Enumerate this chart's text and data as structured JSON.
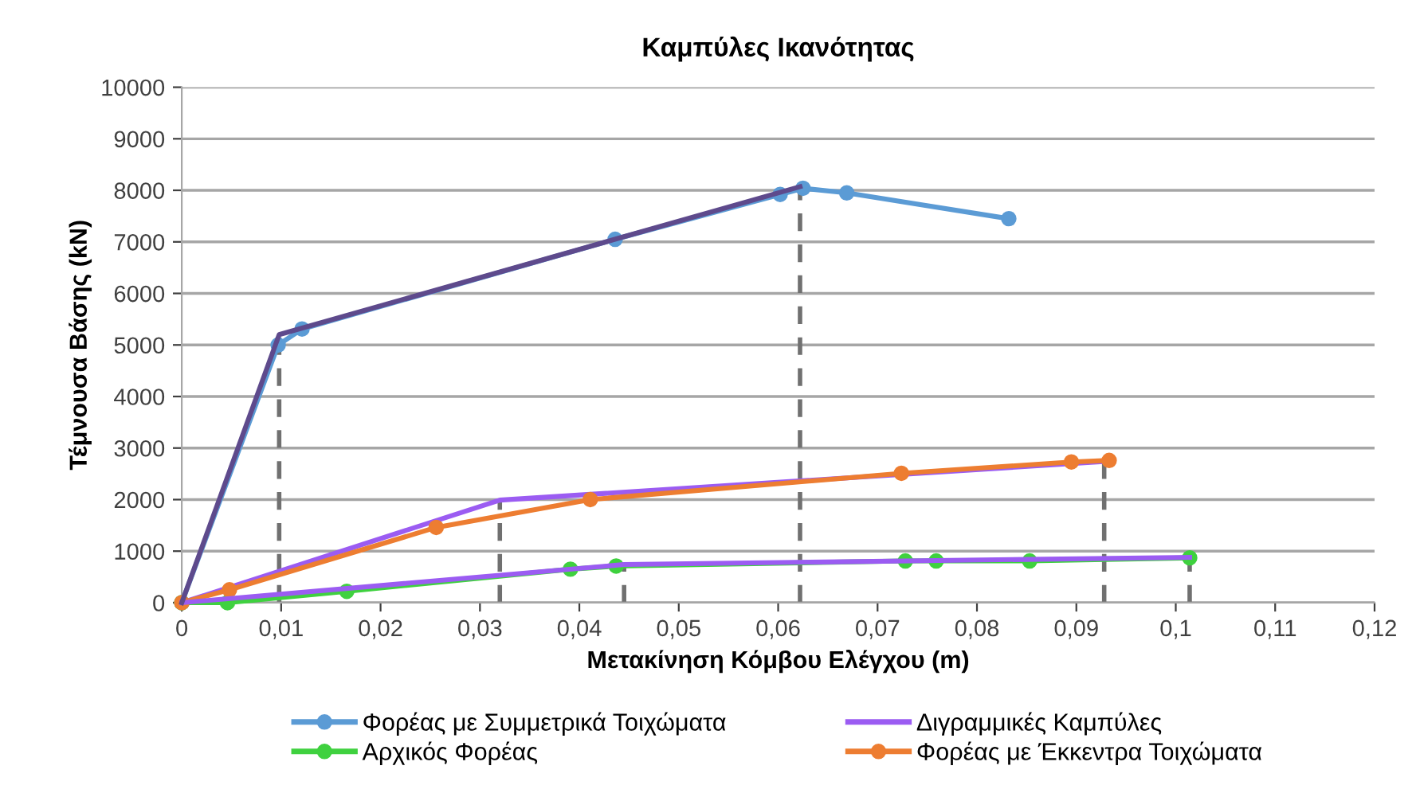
{
  "chart_data": {
    "type": "line",
    "title": "Καμπύλες Ικανότητας",
    "xlabel": "Μετακίνηση Κόμβου Ελέγχου (m)",
    "ylabel": "Τέμνουσα Βάσης (kN)",
    "xlim": [
      0,
      0.12
    ],
    "ylim": [
      0,
      10000
    ],
    "xticks": [
      0,
      {
        "value": 0.01,
        "label": "0,01"
      },
      {
        "value": 0.02,
        "label": "0,02"
      },
      {
        "value": 0.03,
        "label": "0,03"
      },
      {
        "value": 0.04,
        "label": "0,04"
      },
      {
        "value": 0.05,
        "label": "0,05"
      },
      {
        "value": 0.06,
        "label": "0,06"
      },
      {
        "value": 0.07,
        "label": "0,07"
      },
      {
        "value": 0.08,
        "label": "0,08"
      },
      {
        "value": 0.09,
        "label": "0,09"
      },
      {
        "value": 0.1,
        "label": "0,1"
      },
      {
        "value": 0.11,
        "label": "0,11"
      },
      {
        "value": 0.12,
        "label": "0,12"
      }
    ],
    "yticks": [
      0,
      1000,
      2000,
      3000,
      4000,
      5000,
      6000,
      7000,
      8000,
      9000,
      10000
    ],
    "grid": "y",
    "legend": "bottom",
    "series": [
      {
        "name": "Φορέας με Συμμετρικά Τοιχώματα",
        "color": "#5b9bd5",
        "marker": "circle",
        "x": [
          0,
          0.0097,
          0.0121,
          0.0436,
          0.0602,
          0.0625,
          0.0669,
          0.0832
        ],
        "values": [
          0,
          5000,
          5310,
          7050,
          7920,
          8040,
          7950,
          7450
        ]
      },
      {
        "name": "Αρχικός Φορέας",
        "color": "#3fd13f",
        "marker": "circle",
        "x": [
          0,
          0.0046,
          0.0166,
          0.0391,
          0.0437,
          0.0728,
          0.0759,
          0.0853,
          0.1014
        ],
        "values": [
          0,
          0,
          220,
          650,
          710,
          810,
          810,
          810,
          870
        ]
      },
      {
        "name": "Διγραμμικές Καμπύλες",
        "color": "#9b5cf2",
        "marker": "none",
        "x": [
          0,
          0.032,
          0.0928
        ],
        "values": [
          0,
          1990,
          2740
        ]
      },
      {
        "name": "Φορέας με Έκκεντρα Τοιχώματα",
        "color": "#ed7d31",
        "marker": "circle",
        "x": [
          0,
          0.0048,
          0.0256,
          0.0411,
          0.0724,
          0.0895,
          0.0933
        ],
        "values": [
          0,
          250,
          1460,
          2000,
          2510,
          2730,
          2760
        ]
      },
      {
        "color": "#9b5cf2",
        "marker": "none",
        "x": [
          0,
          0.0445,
          0.1014
        ],
        "values": [
          0,
          740,
          880
        ]
      },
      {
        "color": "#5e4a8c",
        "marker": "none",
        "x": [
          0,
          0.0098,
          0.0622
        ],
        "values": [
          0,
          5200,
          8070
        ]
      },
      {
        "color": "#707070",
        "marker": "none",
        "line_style": "dashed",
        "x": [
          0.0098,
          0.0098
        ],
        "values": [
          0,
          5200
        ]
      },
      {
        "color": "#707070",
        "marker": "none",
        "line_style": "dashed",
        "x": [
          0.0622,
          0.0622
        ],
        "values": [
          0,
          8070
        ]
      },
      {
        "color": "#707070",
        "marker": "none",
        "line_style": "dashed",
        "x": [
          0.032,
          0.032
        ],
        "values": [
          0,
          1990
        ]
      },
      {
        "color": "#707070",
        "marker": "none",
        "line_style": "dashed",
        "x": [
          0.0445,
          0.0445
        ],
        "values": [
          0,
          740
        ]
      },
      {
        "color": "#707070",
        "marker": "none",
        "line_style": "dashed",
        "x": [
          0.0928,
          0.0928
        ],
        "values": [
          0,
          2740
        ]
      },
      {
        "color": "#707070",
        "marker": "none",
        "line_style": "dashed",
        "x": [
          0.1014,
          0.1014
        ],
        "values": [
          0,
          880
        ]
      }
    ]
  }
}
